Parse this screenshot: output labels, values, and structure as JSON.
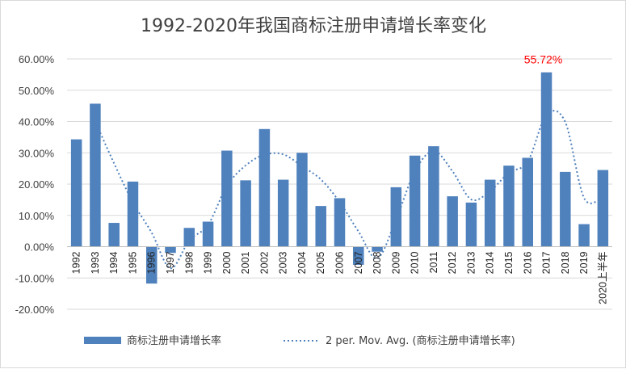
{
  "chart_data": {
    "type": "bar",
    "title": "1992-2020年我国商标注册申请增长率变化",
    "categories": [
      "1992",
      "1993",
      "1994",
      "1995",
      "1996",
      "1997",
      "1998",
      "1999",
      "2000",
      "2001",
      "2002",
      "2003",
      "2004",
      "2005",
      "2006",
      "2007",
      "2008",
      "2009",
      "2010",
      "2011",
      "2012",
      "2013",
      "2014",
      "2015",
      "2016",
      "2017",
      "2018",
      "2019",
      "2020上半年"
    ],
    "series": [
      {
        "name": "商标注册申请增长率",
        "values": [
          34.3,
          45.7,
          7.6,
          20.8,
          -11.8,
          -2.0,
          6.0,
          8.0,
          30.7,
          21.2,
          37.6,
          21.4,
          30.0,
          13.0,
          15.5,
          -5.8,
          -1.6,
          19.0,
          29.1,
          32.1,
          16.1,
          14.1,
          21.4,
          25.9,
          28.4,
          55.72,
          23.9,
          7.2,
          24.5
        ],
        "color": "#4f81bd"
      }
    ],
    "trendline": {
      "name": "2 per. Mov. Avg. (商标注册申请增长率)",
      "values": [
        null,
        40.0,
        26.65,
        14.2,
        4.5,
        -6.9,
        2.0,
        7.0,
        19.35,
        25.95,
        29.4,
        29.5,
        25.7,
        21.5,
        14.25,
        4.85,
        -3.7,
        8.7,
        24.05,
        30.6,
        24.1,
        15.1,
        17.75,
        23.65,
        27.15,
        42.06,
        39.81,
        15.55,
        15.85
      ],
      "color": "#4f81bd"
    },
    "annotations": [
      {
        "category": "2017",
        "text": "55.72%",
        "color": "#ff0000"
      }
    ],
    "yticks": [
      "60.00%",
      "50.00%",
      "40.00%",
      "30.00%",
      "20.00%",
      "10.00%",
      "0.00%",
      "-10.00%",
      "-20.00%"
    ],
    "ytick_values": [
      60,
      50,
      40,
      30,
      20,
      10,
      0,
      -10,
      -20
    ],
    "ylim": [
      -20,
      60
    ],
    "legend": {
      "position": "bottom",
      "items": [
        "商标注册申请增长率",
        "2 per. Mov. Avg. (商标注册申请增长率)"
      ]
    },
    "grid": true,
    "gridline_color": "#d9d9d9"
  }
}
